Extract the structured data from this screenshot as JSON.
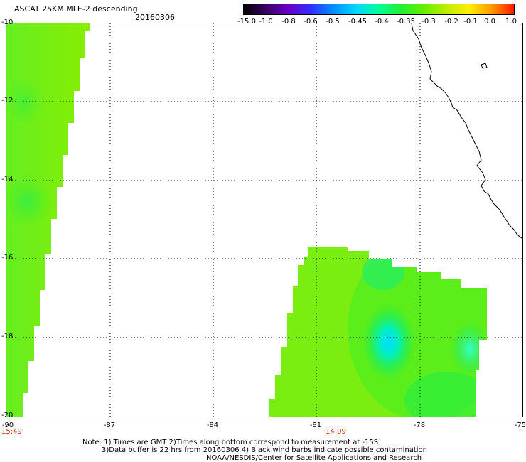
{
  "header": {
    "title": "ASCAT 25KM MLE-2 descending",
    "date": "20160306"
  },
  "colorbar": {
    "labels": [
      "-15.0",
      "-1.0",
      "-0.8",
      "-0.6",
      "-0.5",
      "-0.45",
      "-0.4",
      "-0.35",
      "-0.3",
      "-0.2",
      "-0.1",
      "0.0",
      "1.0"
    ],
    "colors": [
      "#000000",
      "#3a0066",
      "#6a00c8",
      "#3030ff",
      "#0090ff",
      "#00d8ff",
      "#00ff99",
      "#22ee33",
      "#66ee00",
      "#bbee00",
      "#ffee00",
      "#ff9900",
      "#ff1a00"
    ]
  },
  "axes": {
    "y_labels": [
      "-10",
      "-12",
      "-14",
      "-16",
      "-18",
      "-20"
    ],
    "x_labels": [
      "-90",
      "-87",
      "-84",
      "-81",
      "-78",
      "-75"
    ],
    "time_labels": [
      "15:49",
      "14:09"
    ]
  },
  "notes": [
    "Note: 1) Times are GMT 2)Times along bottom correspond to measurement at -15S",
    "3)Data buffer is 22 hrs from 20160306 4) Black wind barbs indicate possible contamination",
    "NOAA/NESDIS/Center for Satellite Applications and Research"
  ]
}
